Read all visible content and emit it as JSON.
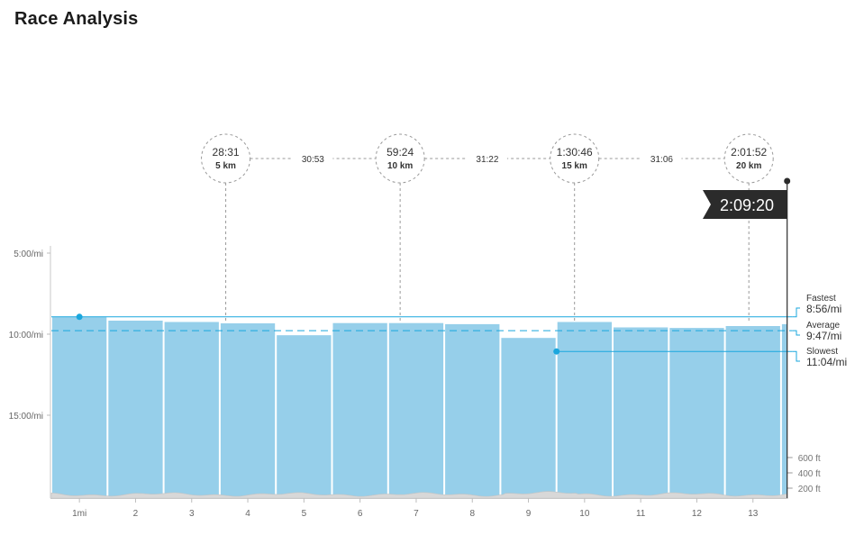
{
  "page": {
    "title": "Race Analysis"
  },
  "chart_data": {
    "type": "bar",
    "title": "Race Analysis",
    "x_unit_first_tick": "1mi",
    "categories": [
      "1mi",
      "2",
      "3",
      "4",
      "5",
      "6",
      "7",
      "8",
      "9",
      "10",
      "11",
      "12",
      "13"
    ],
    "values_pace_seconds_per_mile": [
      537,
      550,
      555,
      560,
      604,
      559,
      559,
      563,
      614,
      555,
      575,
      577,
      570
    ],
    "final_partial_bar_pace_seconds_per_mile": 563,
    "y_axis": {
      "ticks": [
        "5:00/mi",
        "10:00/mi",
        "15:00/mi"
      ],
      "tick_values_seconds": [
        300,
        600,
        900
      ],
      "inverted": true
    },
    "elevation_axis": {
      "ticks": [
        "600 ft",
        "400 ft",
        "200 ft"
      ]
    },
    "checkpoints": [
      {
        "time": "28:31",
        "label": "5 km",
        "mile": 3.107
      },
      {
        "time": "59:24",
        "label": "10 km",
        "mile": 6.214
      },
      {
        "time": "1:30:46",
        "label": "15 km",
        "mile": 9.321
      },
      {
        "time": "2:01:52",
        "label": "20 km",
        "mile": 12.427
      }
    ],
    "splits": [
      "30:53",
      "31:22",
      "31:06"
    ],
    "finish": {
      "time": "2:09:20",
      "mile": 13.109
    },
    "reference_lines": {
      "fastest": {
        "label": "Fastest",
        "value": "8:56/mi",
        "seconds": 536,
        "mile": 0.5
      },
      "average": {
        "label": "Average",
        "value": "9:47/mi",
        "seconds": 587
      },
      "slowest": {
        "label": "Slowest",
        "value": "11:04/mi",
        "seconds": 664,
        "mile": 9.0
      }
    },
    "colors": {
      "bar": "#96cfea",
      "line": "#1aa7de",
      "elevation": "#d8d8d8",
      "flag": "#2b2b2b"
    }
  }
}
